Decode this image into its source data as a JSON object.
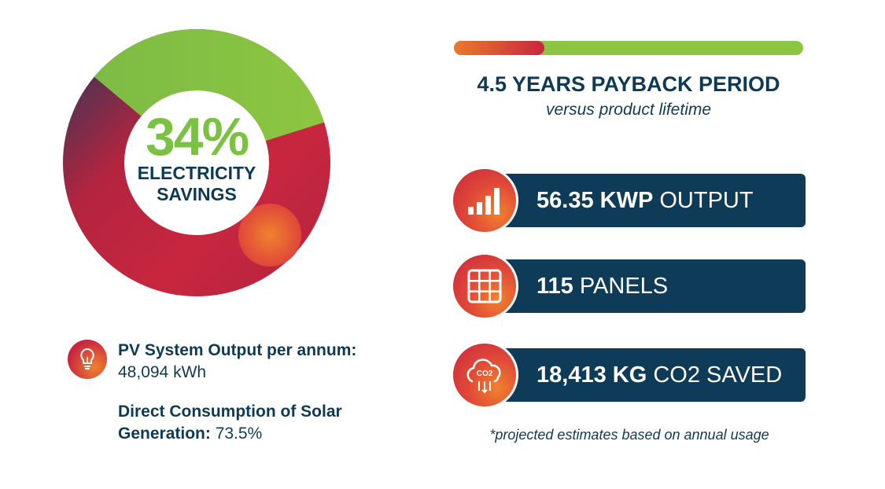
{
  "donut": {
    "percent": "34%",
    "label_line1": "ELECTRICITY",
    "label_line2": "SAVINGS",
    "value_fraction": 0.34
  },
  "pv": {
    "title": "PV System Output per annum:",
    "value": "48,094 kWh",
    "icon": "lightbulb-icon"
  },
  "direct_consumption": {
    "label_line1": "Direct Consumption of Solar",
    "label_line2": "Generation:",
    "value": "73.5%"
  },
  "payback": {
    "title": "4.5 YEARS PAYBACK PERIOD",
    "subtitle": "versus product lifetime",
    "fill_fraction": 0.26
  },
  "stats": [
    {
      "value": "56.35 KWP",
      "label": "OUTPUT",
      "icon": "bar-chart-icon"
    },
    {
      "value": "115",
      "label": "PANELS",
      "icon": "solar-panel-icon"
    },
    {
      "value": "18,413 KG",
      "label": "CO2 SAVED",
      "icon": "co2-cloud-icon"
    }
  ],
  "co2_icon_text": "CO2",
  "footnote": "*projected estimates based on annual usage",
  "colors": {
    "navy": "#0e3b57",
    "green": "#8bc541",
    "red": "#c8263f",
    "orange": "#f0822e"
  }
}
